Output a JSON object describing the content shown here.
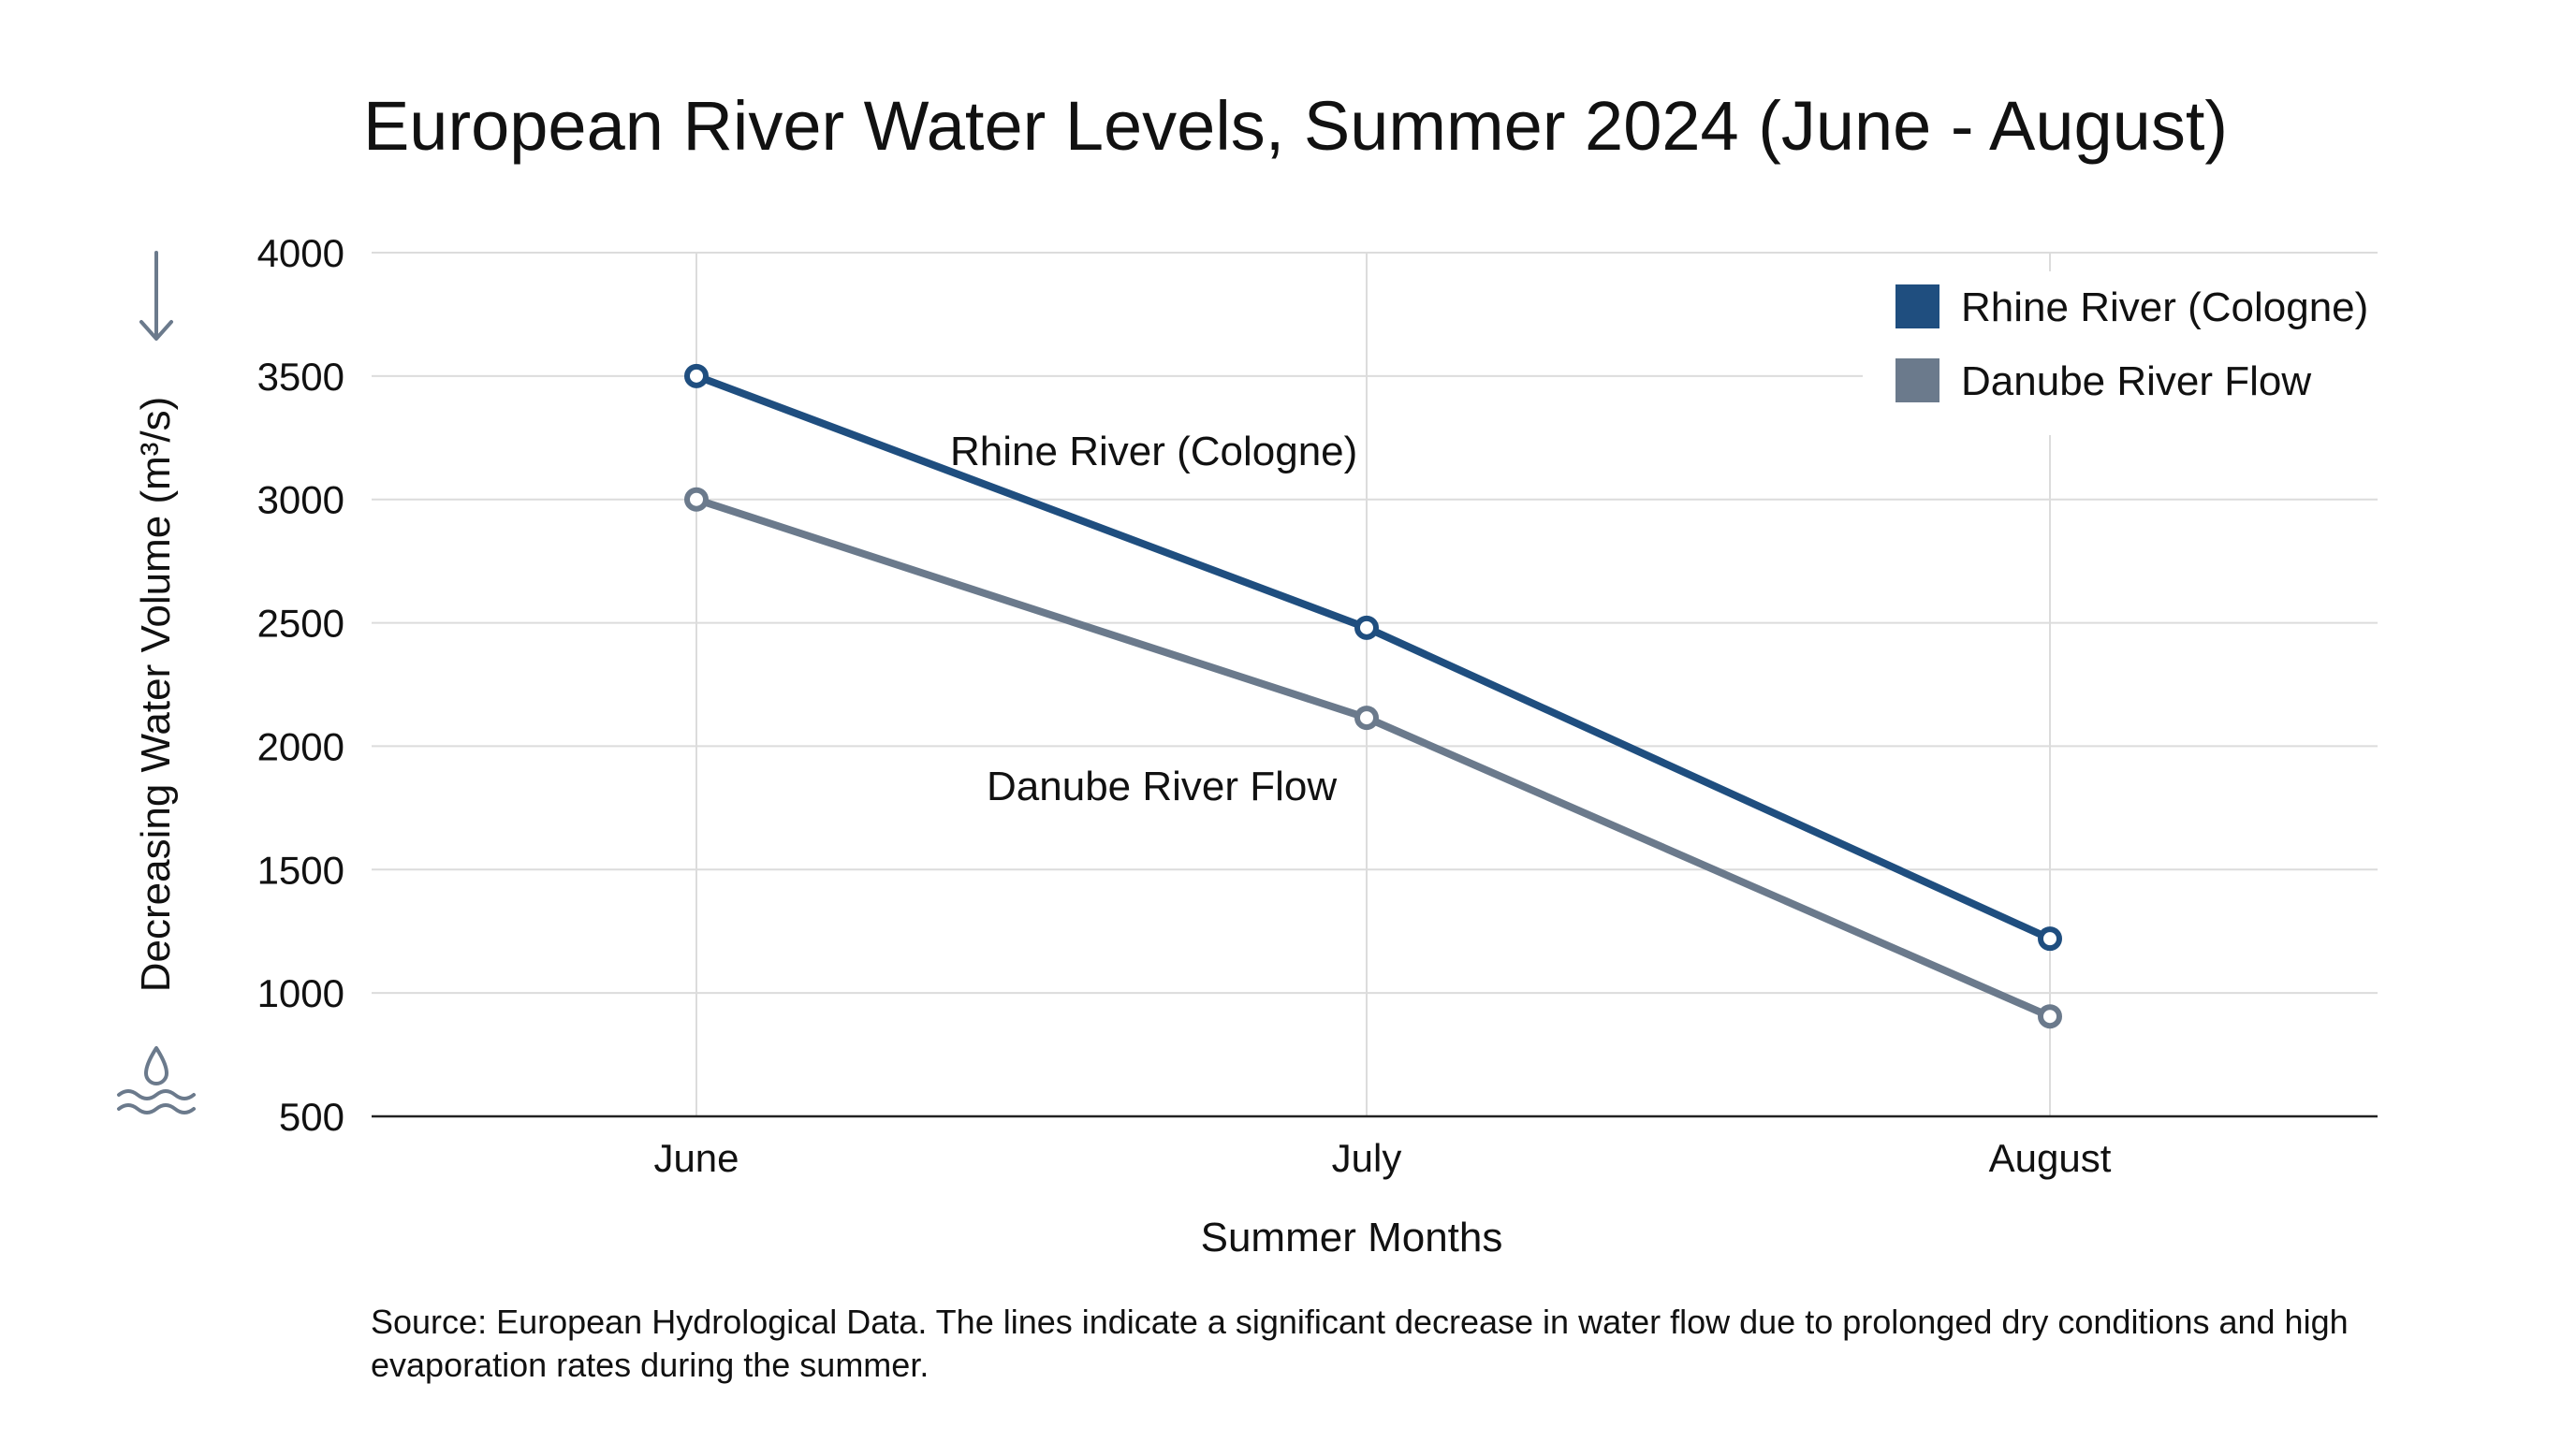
{
  "chart_data": {
    "type": "line",
    "title": "European River Water Levels, Summer 2024 (June - August)",
    "xlabel": "Summer Months",
    "ylabel": "Decreasing Water Volume (m³/s)",
    "categories": [
      "June",
      "July",
      "August"
    ],
    "ylim": [
      500,
      4000
    ],
    "yticks": [
      500,
      1000,
      1500,
      2000,
      2500,
      3000,
      3500,
      4000
    ],
    "grid": true,
    "legend_position": "top-right",
    "series": [
      {
        "name": "Rhine River (Cologne)",
        "values": [
          3500,
          2480,
          1220
        ],
        "color": "#1f4e7f",
        "label": "Rhine River (Cologne)"
      },
      {
        "name": "Danube River Flow",
        "values": [
          3000,
          2115,
          905
        ],
        "color": "#6b7a8c",
        "label": "Danube River Flow"
      }
    ],
    "source_note": "Source: European Hydrological Data. The lines indicate a significant decrease in water flow due to prolonged dry conditions and high evaporation rates during the summer.",
    "icons": [
      "down-arrow-icon",
      "water-drop-icon",
      "waves-icon"
    ],
    "icon_color": "#6b7a8c",
    "axis_color": "#222222",
    "grid_color": "#dcdcdc"
  }
}
